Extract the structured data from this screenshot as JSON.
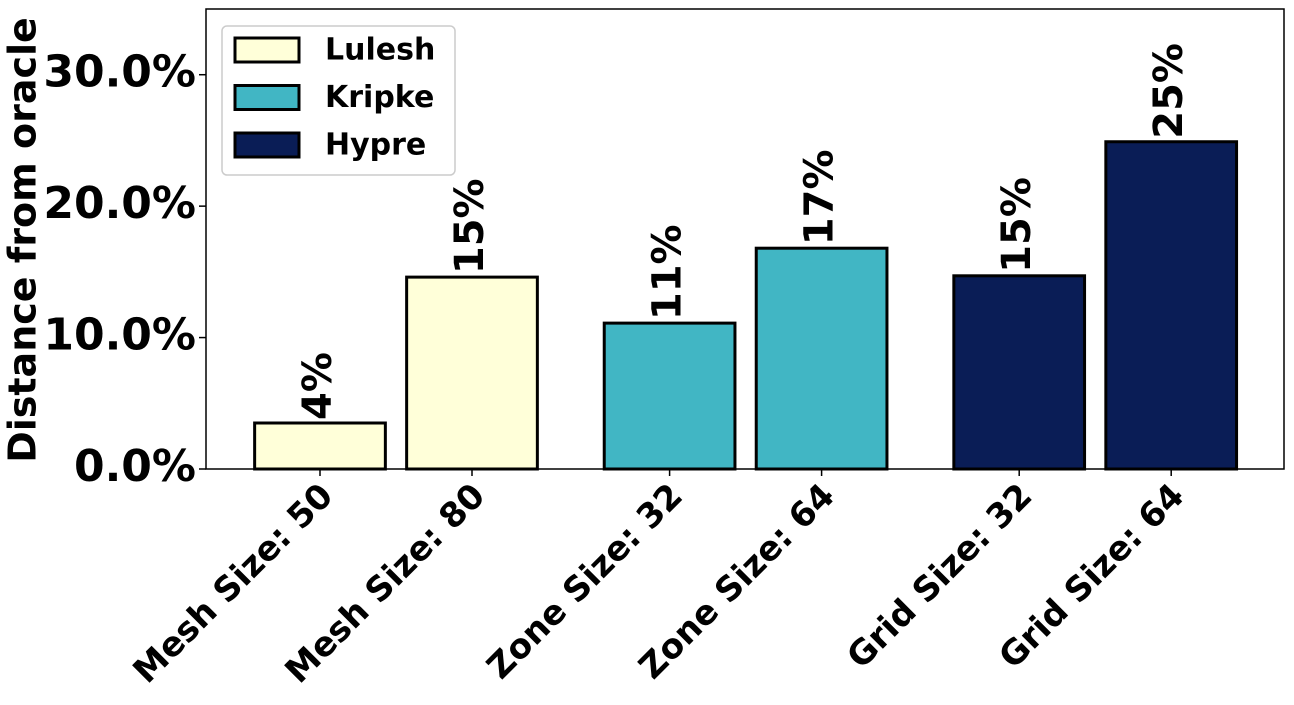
{
  "chart_data": {
    "type": "bar",
    "y_label": "Distance from oracle",
    "categories": [
      "Mesh Size: 50",
      "Mesh Size: 80",
      "Zone Size: 32",
      "Zone Size: 64",
      "Grid Size: 32",
      "Grid Size: 64"
    ],
    "series": [
      {
        "name": "Lulesh",
        "color": "#ffffd9",
        "values": [
          3.5,
          14.6,
          null,
          null,
          null,
          null
        ],
        "value_labels": [
          "4%",
          "15%",
          null,
          null,
          null,
          null
        ]
      },
      {
        "name": "Kripke",
        "color": "#41b6c4",
        "values": [
          null,
          null,
          11.1,
          16.8,
          null,
          null
        ],
        "value_labels": [
          null,
          null,
          "11%",
          "17%",
          null,
          null
        ]
      },
      {
        "name": "Hypre",
        "color": "#0a1d56",
        "values": [
          null,
          null,
          null,
          null,
          14.7,
          24.9
        ],
        "value_labels": [
          null,
          null,
          null,
          null,
          "15%",
          "25%"
        ]
      }
    ],
    "ylim": [
      0,
      35
    ],
    "yticks": [
      {
        "value": 0,
        "label": "0.0%"
      },
      {
        "value": 10,
        "label": "10.0%"
      },
      {
        "value": 20,
        "label": "20.0%"
      },
      {
        "value": 30,
        "label": "30.0%"
      }
    ],
    "legend": "upper left"
  }
}
